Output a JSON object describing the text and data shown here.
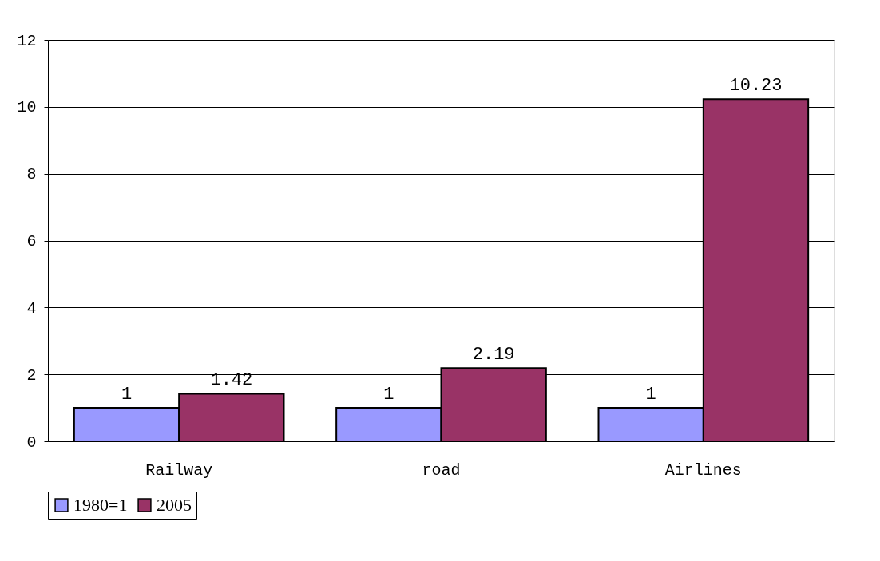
{
  "chart_data": {
    "type": "bar",
    "categories": [
      "Railway",
      "road",
      "Airlines"
    ],
    "series": [
      {
        "name": "1980=1",
        "color": "#9999ff",
        "values": [
          1,
          1,
          1
        ]
      },
      {
        "name": "2005",
        "color": "#993366",
        "values": [
          1.42,
          2.19,
          10.23
        ]
      }
    ],
    "ylim": [
      0,
      12
    ],
    "yticks": [
      0,
      2,
      4,
      6,
      8,
      10,
      12
    ],
    "grid": "y",
    "legend": "bottom",
    "data_labels": true
  }
}
